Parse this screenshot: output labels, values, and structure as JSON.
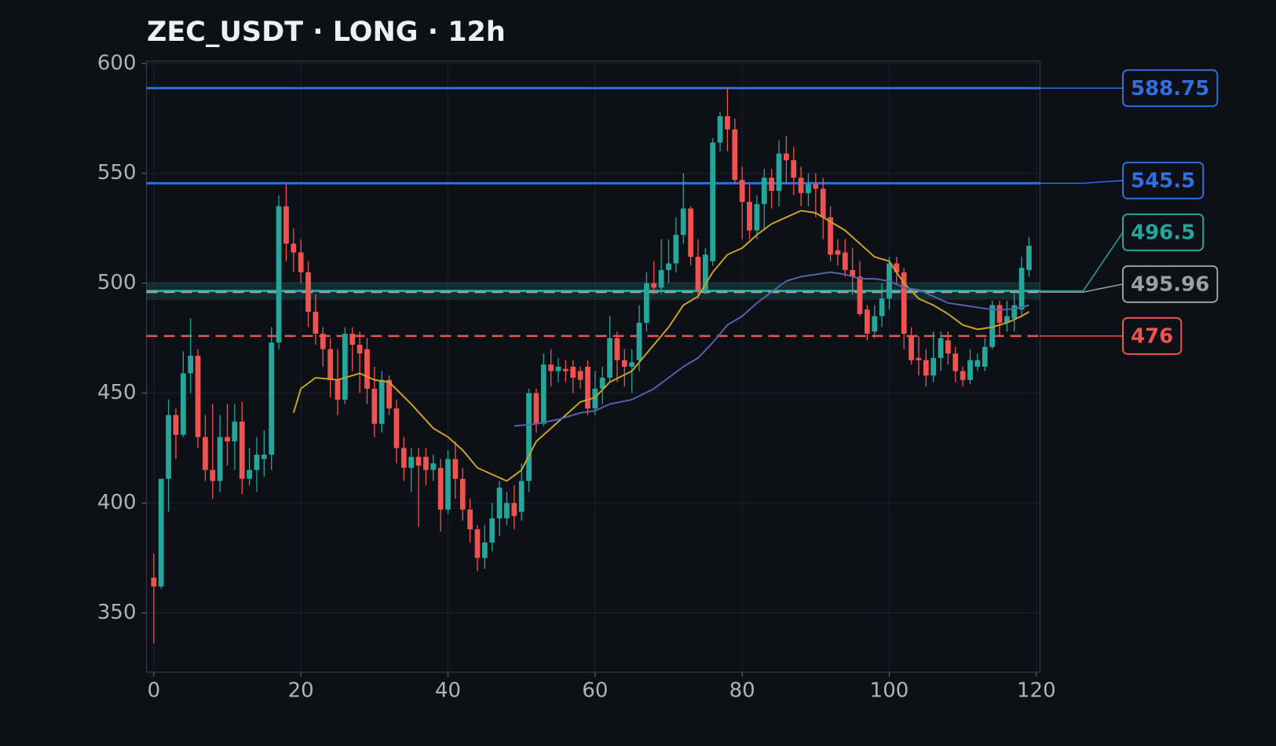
{
  "chart_data": {
    "type": "candlestick",
    "title": "ZEC_USDT · LONG · 12h",
    "up_color": "#26a69a",
    "down_color": "#ef5350",
    "xlim": [
      -1,
      120.5
    ],
    "ylim": [
      323,
      601
    ],
    "xticks": [
      0,
      20,
      40,
      60,
      80,
      100,
      120
    ],
    "yticks": [
      350,
      400,
      450,
      500,
      550,
      600
    ],
    "grid": true,
    "x": [
      0,
      1,
      2,
      3,
      4,
      5,
      6,
      7,
      8,
      9,
      10,
      11,
      12,
      13,
      14,
      15,
      16,
      17,
      18,
      19,
      20,
      21,
      22,
      23,
      24,
      25,
      26,
      27,
      28,
      29,
      30,
      31,
      32,
      33,
      34,
      35,
      36,
      37,
      38,
      39,
      40,
      41,
      42,
      43,
      44,
      45,
      46,
      47,
      48,
      49,
      50,
      51,
      52,
      53,
      54,
      55,
      56,
      57,
      58,
      59,
      60,
      61,
      62,
      63,
      64,
      65,
      66,
      67,
      68,
      69,
      70,
      71,
      72,
      73,
      74,
      75,
      76,
      77,
      78,
      79,
      80,
      81,
      82,
      83,
      84,
      85,
      86,
      87,
      88,
      89,
      90,
      91,
      92,
      93,
      94,
      95,
      96,
      97,
      98,
      99,
      100,
      101,
      102,
      103,
      104,
      105,
      106,
      107,
      108,
      109,
      110,
      111,
      112,
      113,
      114,
      115,
      116,
      117,
      118,
      119
    ],
    "open": [
      366,
      362,
      411,
      440,
      431,
      459,
      467,
      430,
      415,
      410,
      430,
      428,
      437,
      411,
      415,
      420,
      422,
      473,
      535,
      518,
      514,
      505,
      487,
      477,
      470,
      456,
      447,
      477,
      472,
      470,
      452,
      436,
      456,
      443,
      425,
      416,
      421,
      421,
      415,
      416,
      397,
      420,
      411,
      397,
      388,
      375,
      382,
      393,
      393,
      400,
      396,
      410,
      450,
      436,
      463,
      460,
      461,
      462,
      460,
      462,
      443,
      452,
      457,
      475,
      465,
      462,
      465,
      482,
      500,
      498,
      506,
      509,
      522,
      534,
      512,
      497,
      510,
      564,
      576,
      570,
      547,
      537,
      524,
      536,
      548,
      542,
      559,
      556,
      548,
      541,
      545,
      543,
      530,
      515,
      514,
      506,
      503,
      488,
      478,
      485,
      493,
      509,
      505,
      476,
      466,
      465,
      458,
      466,
      474,
      468,
      460,
      456,
      462,
      462,
      471,
      490,
      482,
      484,
      488,
      506
    ],
    "high": [
      377,
      411,
      447,
      443,
      469,
      484,
      470,
      440,
      445,
      440,
      445,
      445,
      446,
      425,
      430,
      433,
      480,
      540,
      545,
      525,
      520,
      510,
      495,
      480,
      475,
      470,
      480,
      480,
      478,
      475,
      462,
      460,
      458,
      447,
      430,
      425,
      425,
      425,
      422,
      420,
      424,
      428,
      416,
      402,
      390,
      390,
      400,
      410,
      405,
      408,
      418,
      452,
      452,
      468,
      470,
      466,
      465,
      465,
      462,
      465,
      460,
      462,
      485,
      478,
      470,
      470,
      490,
      505,
      510,
      520,
      520,
      530,
      550,
      535,
      520,
      516,
      566,
      578,
      589,
      575,
      553,
      545,
      540,
      552,
      552,
      565,
      567,
      562,
      553,
      550,
      550,
      548,
      535,
      520,
      520,
      516,
      510,
      490,
      490,
      500,
      512,
      512,
      507,
      480,
      476,
      470,
      478,
      478,
      478,
      471,
      462,
      470,
      468,
      475,
      492,
      492,
      492,
      495,
      512,
      521
    ],
    "low": [
      336,
      361,
      396,
      420,
      430,
      450,
      425,
      410,
      402,
      405,
      417,
      415,
      404,
      408,
      405,
      412,
      415,
      470,
      510,
      505,
      500,
      480,
      472,
      462,
      448,
      440,
      445,
      460,
      450,
      445,
      430,
      432,
      440,
      418,
      410,
      405,
      389,
      408,
      410,
      387,
      395,
      402,
      392,
      382,
      369,
      370,
      378,
      385,
      390,
      388,
      392,
      405,
      432,
      435,
      453,
      455,
      455,
      450,
      452,
      440,
      440,
      445,
      455,
      455,
      453,
      450,
      460,
      478,
      495,
      495,
      500,
      505,
      518,
      508,
      493,
      495,
      508,
      560,
      560,
      545,
      520,
      520,
      520,
      525,
      534,
      535,
      545,
      540,
      535,
      535,
      530,
      520,
      510,
      508,
      503,
      495,
      485,
      474,
      475,
      480,
      488,
      500,
      470,
      463,
      458,
      453,
      455,
      460,
      463,
      455,
      453,
      454,
      460,
      460,
      470,
      476,
      478,
      478,
      485,
      503
    ],
    "close": [
      362,
      411,
      440,
      431,
      459,
      467,
      430,
      415,
      410,
      430,
      428,
      437,
      411,
      415,
      422,
      422,
      473,
      535,
      518,
      514,
      505,
      487,
      477,
      470,
      456,
      447,
      477,
      472,
      468,
      452,
      436,
      456,
      443,
      425,
      416,
      421,
      417,
      415,
      418,
      397,
      420,
      411,
      397,
      388,
      375,
      382,
      393,
      407,
      400,
      394,
      410,
      450,
      436,
      463,
      460,
      462,
      460,
      457,
      456,
      443,
      452,
      457,
      475,
      465,
      462,
      464,
      482,
      500,
      498,
      506,
      509,
      522,
      534,
      512,
      497,
      513,
      564,
      576,
      570,
      547,
      537,
      524,
      536,
      548,
      542,
      559,
      556,
      548,
      541,
      545,
      543,
      530,
      513,
      513,
      506,
      503,
      486,
      477,
      485,
      493,
      509,
      505,
      477,
      465,
      465,
      458,
      466,
      475,
      468,
      460,
      456,
      465,
      465,
      471,
      490,
      482,
      485,
      490,
      507,
      517
    ],
    "overlays": [
      {
        "color": "#c9a227",
        "x": [
          19,
          20,
          22,
          25,
          28,
          30,
          32,
          35,
          38,
          40,
          42,
          44,
          46,
          48,
          50,
          52,
          55,
          58,
          60,
          62,
          65,
          68,
          70,
          72,
          74,
          76,
          78,
          80,
          82,
          84,
          86,
          88,
          90,
          92,
          94,
          96,
          98,
          100,
          102,
          104,
          106,
          108,
          110,
          112,
          114,
          116,
          118,
          119
        ],
        "values": [
          441,
          452,
          457,
          456,
          459,
          456,
          455,
          445,
          434,
          430,
          424,
          416,
          413,
          410,
          415,
          428,
          437,
          446,
          448,
          455,
          460,
          472,
          480,
          490,
          494,
          505,
          513,
          516,
          522,
          527,
          530,
          533,
          532,
          528,
          524,
          518,
          512,
          510,
          500,
          493,
          490,
          486,
          481,
          479,
          480,
          482,
          485,
          487
        ]
      },
      {
        "color": "#5561a8",
        "x": [
          49,
          52,
          55,
          58,
          60,
          62,
          65,
          68,
          70,
          72,
          74,
          76,
          78,
          80,
          82,
          84,
          86,
          88,
          90,
          92,
          94,
          96,
          98,
          100,
          102,
          104,
          106,
          108,
          110,
          112,
          114,
          116,
          118,
          119
        ],
        "values": [
          435,
          436,
          438,
          441,
          442,
          445,
          447,
          452,
          457,
          462,
          466,
          473,
          481,
          485,
          491,
          496,
          501,
          503,
          504,
          505,
          504,
          502,
          502,
          501,
          498,
          497,
          494,
          491,
          490,
          489,
          488,
          488,
          489,
          490
        ]
      }
    ],
    "levels": [
      {
        "value": 588.75,
        "color": "#2f6fe0",
        "style": "solid"
      },
      {
        "value": 545.5,
        "color": "#2f6fe0",
        "style": "solid"
      },
      {
        "value": 496.5,
        "color": "#26a69a",
        "style": "solid",
        "band": [
          492.5,
          500.5
        ]
      },
      {
        "value": 495.96,
        "color": "#9aa0a6",
        "style": "dashed"
      },
      {
        "value": 476,
        "color": "#ef5350",
        "style": "dashed"
      }
    ]
  }
}
